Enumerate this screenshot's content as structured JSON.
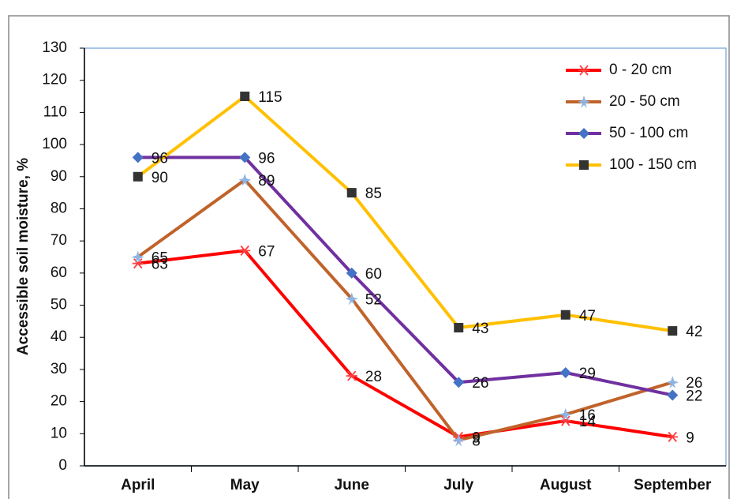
{
  "chart_data": {
    "type": "line",
    "y_label": "Accessible soil moisture, %",
    "categories": [
      "April",
      "May",
      "June",
      "July",
      "August",
      "September"
    ],
    "ylim": [
      0,
      130
    ],
    "yticks": [
      0,
      10,
      20,
      30,
      40,
      50,
      60,
      70,
      80,
      90,
      100,
      110,
      120,
      130
    ],
    "legend": "top-right",
    "series": [
      {
        "name": "0 - 20 cm",
        "color": "#ff0000",
        "marker": "asterisk",
        "marker_color": "#ff4040",
        "values": [
          63,
          67,
          28,
          9,
          14,
          9
        ]
      },
      {
        "name": "20 - 50 cm",
        "color": "#c0632b",
        "marker": "star",
        "marker_color": "#8db4e2",
        "values": [
          65,
          89,
          52,
          8,
          16,
          26
        ]
      },
      {
        "name": "50 - 100 cm",
        "color": "#7030a0",
        "marker": "diamond",
        "marker_color": "#4472c4",
        "values": [
          96,
          96,
          60,
          26,
          29,
          22
        ]
      },
      {
        "name": "100 - 150 cm",
        "color": "#ffc000",
        "marker": "square",
        "marker_color": "#333333",
        "values": [
          90,
          115,
          85,
          43,
          47,
          42
        ]
      }
    ]
  }
}
